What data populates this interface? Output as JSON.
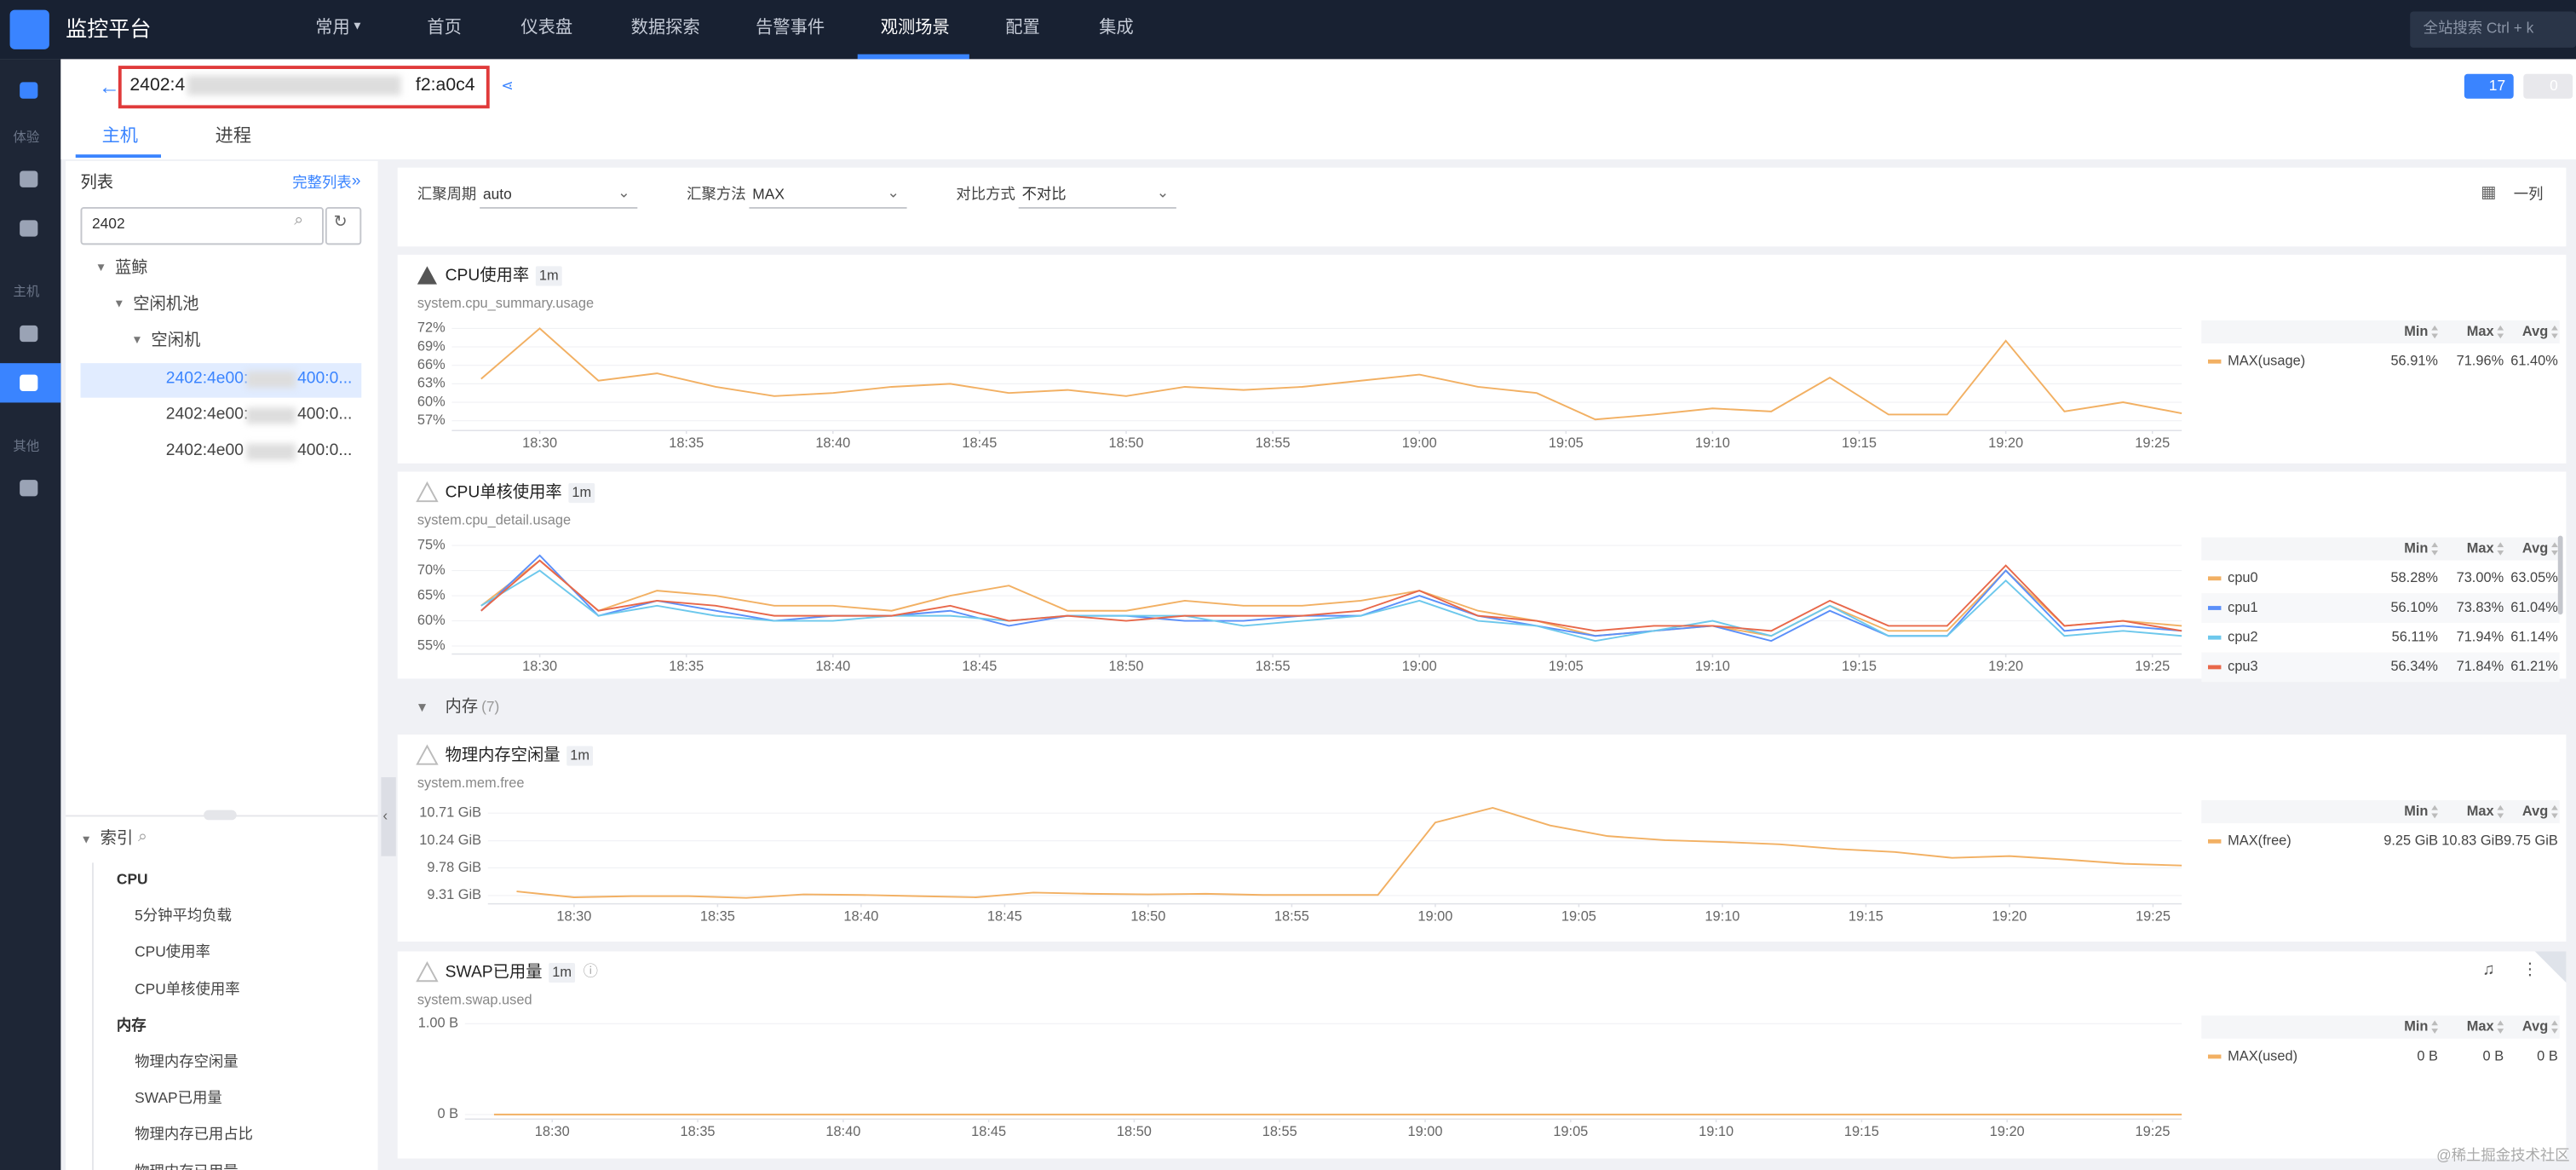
{
  "topbar": {
    "brand": "监控平台",
    "nav": [
      "常用",
      "首页",
      "仪表盘",
      "数据探索",
      "告警事件",
      "观测场景",
      "配置",
      "集成"
    ],
    "active": 5,
    "search": "全站搜索 Ctrl + k"
  },
  "sidebar": {
    "groups": [
      "体验",
      "主机",
      "其他"
    ]
  },
  "header": {
    "host_start": "2402:4",
    "host_end": "f2:a0c4",
    "alerts": 17,
    "muted": 0
  },
  "tabs": [
    "主机",
    "进程"
  ],
  "list": {
    "title": "列表",
    "full_list": "完整列表",
    "query": "2402",
    "tree": {
      "label": "蓝鲸",
      "children": [
        {
          "label": "空闲机池",
          "children": [
            {
              "label": "空闲机",
              "children": [
                {
                  "label_start": "2402:4e00:",
                  "label_end": "400:0..."
                },
                {
                  "label_start": "2402:4e00:",
                  "label_end": "400:0..."
                },
                {
                  "label_start": "2402:4e00",
                  "label_end": "400:0..."
                }
              ]
            }
          ]
        }
      ]
    }
  },
  "index": {
    "title": "索引",
    "groups": [
      {
        "name": "CPU",
        "items": [
          "5分钟平均负载",
          "CPU使用率",
          "CPU单核使用率"
        ]
      },
      {
        "name": "内存",
        "items": [
          "物理内存空闲量",
          "SWAP已用量",
          "物理内存已用占比",
          "物理内存已用量"
        ]
      }
    ]
  },
  "toolbar": {
    "fields": [
      {
        "label": "汇聚周期",
        "value": "auto"
      },
      {
        "label": "汇聚方法",
        "value": "MAX"
      },
      {
        "label": "对比方式",
        "value": "不对比"
      }
    ],
    "layout": "一列"
  },
  "section": {
    "name": "内存",
    "count": "(7)"
  },
  "watermark": "@稀土掘金技术社区",
  "chart_data": [
    {
      "type": "line",
      "title": "CPU使用率",
      "interval": "1m",
      "metric": "system.cpu_summary.usage",
      "grid": true,
      "x": [
        "18:28",
        "18:30",
        "18:32",
        "18:34",
        "18:36",
        "18:38",
        "18:40",
        "18:42",
        "18:44",
        "18:46",
        "18:48",
        "18:50",
        "18:52",
        "18:54",
        "18:56",
        "18:58",
        "19:00",
        "19:02",
        "19:04",
        "19:06",
        "19:08",
        "19:10",
        "19:12",
        "19:14",
        "19:16",
        "19:18",
        "19:20",
        "19:22",
        "19:24",
        "19:26"
      ],
      "xlim": [
        "18:27",
        "19:26"
      ],
      "xticks": [
        "18:30",
        "18:35",
        "18:40",
        "18:45",
        "18:50",
        "18:55",
        "19:00",
        "19:05",
        "19:10",
        "19:15",
        "19:20",
        "19:25"
      ],
      "ylim": [
        55.4,
        73.3
      ],
      "yticks": [
        {
          "value": 57,
          "label": "57%"
        },
        {
          "value": 60,
          "label": "60%"
        },
        {
          "value": 63,
          "label": "63%"
        },
        {
          "value": 66,
          "label": "66%"
        },
        {
          "value": 69,
          "label": "69%"
        },
        {
          "value": 72,
          "label": "72%"
        }
      ],
      "legend_columns": [
        "Min",
        "Max",
        "Avg"
      ],
      "series": [
        {
          "name": "MAX(usage)",
          "color": "#f2b063",
          "stats": [
            "56.91%",
            "71.96%",
            "61.40%"
          ],
          "values": [
            63.8,
            72,
            63.5,
            64.7,
            62.5,
            61,
            61.5,
            62.5,
            63,
            61.5,
            62,
            61,
            62.5,
            62,
            62.5,
            63.5,
            64.5,
            62.5,
            61.5,
            57.2,
            58,
            59,
            58.5,
            64,
            58,
            58,
            70,
            58.5,
            60,
            58.2
          ]
        }
      ]
    },
    {
      "type": "line",
      "title": "CPU单核使用率",
      "interval": "1m",
      "metric": "system.cpu_detail.usage",
      "grid": true,
      "x": [
        "18:28",
        "18:30",
        "18:32",
        "18:34",
        "18:36",
        "18:38",
        "18:40",
        "18:42",
        "18:44",
        "18:46",
        "18:48",
        "18:50",
        "18:52",
        "18:54",
        "18:56",
        "18:58",
        "19:00",
        "19:02",
        "19:04",
        "19:06",
        "19:08",
        "19:10",
        "19:12",
        "19:14",
        "19:16",
        "19:18",
        "19:20",
        "19:22",
        "19:24",
        "19:26"
      ],
      "xlim": [
        "18:27",
        "19:26"
      ],
      "xticks": [
        "18:30",
        "18:35",
        "18:40",
        "18:45",
        "18:50",
        "18:55",
        "19:00",
        "19:05",
        "19:10",
        "19:15",
        "19:20",
        "19:25"
      ],
      "ylim": [
        53.4,
        76.6
      ],
      "yticks": [
        {
          "value": 55,
          "label": "55%"
        },
        {
          "value": 60,
          "label": "60%"
        },
        {
          "value": 65,
          "label": "65%"
        },
        {
          "value": 70,
          "label": "70%"
        },
        {
          "value": 75,
          "label": "75%"
        }
      ],
      "legend_columns": [
        "Min",
        "Max",
        "Avg"
      ],
      "series": [
        {
          "name": "cpu0",
          "color": "#f2b063",
          "stats": [
            "58.28%",
            "73.00%",
            "63.05%"
          ],
          "values": [
            63,
            72,
            62,
            66,
            65,
            63,
            63,
            62,
            65,
            67,
            62,
            62,
            64,
            63,
            63,
            64,
            66,
            62,
            60,
            57,
            58,
            59,
            57,
            63,
            58,
            58,
            70,
            59,
            60,
            59
          ]
        },
        {
          "name": "cpu1",
          "color": "#5b8ff9",
          "stats": [
            "56.10%",
            "73.83%",
            "61.04%"
          ],
          "values": [
            62,
            73,
            61,
            64,
            62,
            60,
            61,
            61,
            62,
            59,
            61,
            61,
            60,
            60,
            61,
            61,
            65,
            61,
            59,
            57,
            58,
            59,
            56,
            62,
            57,
            57,
            70,
            58,
            59,
            58
          ]
        },
        {
          "name": "cpu2",
          "color": "#6dc8ec",
          "stats": [
            "56.11%",
            "71.94%",
            "61.14%"
          ],
          "values": [
            63,
            70,
            61,
            63,
            61,
            60,
            60,
            61,
            61,
            60,
            61,
            61,
            61,
            59,
            60,
            61,
            64,
            60,
            59,
            56,
            58,
            60,
            57,
            63,
            57,
            57,
            68,
            57,
            58,
            57
          ]
        },
        {
          "name": "cpu3",
          "color": "#e8684a",
          "stats": [
            "56.34%",
            "71.84%",
            "61.21%"
          ],
          "values": [
            62,
            72,
            62,
            64,
            63,
            61,
            61,
            61,
            63,
            60,
            61,
            60,
            61,
            61,
            61,
            62,
            66,
            61,
            60,
            58,
            59,
            59,
            58,
            64,
            59,
            59,
            71,
            59,
            60,
            58
          ]
        }
      ]
    },
    {
      "type": "line",
      "title": "物理内存空闲量",
      "interval": "1m",
      "metric": "system.mem.free",
      "grid": true,
      "x": [
        "18:28",
        "18:30",
        "18:32",
        "18:34",
        "18:36",
        "18:38",
        "18:40",
        "18:42",
        "18:44",
        "18:46",
        "18:48",
        "18:50",
        "18:52",
        "18:54",
        "18:56",
        "18:58",
        "19:00",
        "19:02",
        "19:04",
        "19:06",
        "19:08",
        "19:10",
        "19:12",
        "19:14",
        "19:16",
        "19:18",
        "19:20",
        "19:22",
        "19:24",
        "19:26"
      ],
      "xlim": [
        "18:27",
        "19:26"
      ],
      "xticks": [
        "18:30",
        "18:35",
        "18:40",
        "18:45",
        "18:50",
        "18:55",
        "19:00",
        "19:05",
        "19:10",
        "19:15",
        "19:20",
        "19:25"
      ],
      "ylim": [
        9.17,
        10.9
      ],
      "yticks": [
        {
          "value": 9.31,
          "label": "9.31 GiB"
        },
        {
          "value": 9.78,
          "label": "9.78 GiB"
        },
        {
          "value": 10.24,
          "label": "10.24 GiB"
        },
        {
          "value": 10.71,
          "label": "10.71 GiB"
        }
      ],
      "legend_columns": [
        "Min",
        "Max",
        "Avg"
      ],
      "series": [
        {
          "name": "MAX(free)",
          "color": "#f2b063",
          "stats": [
            "9.25 GiB",
            "10.83 GiB",
            "9.75 GiB"
          ],
          "values": [
            9.38,
            9.28,
            9.3,
            9.3,
            9.27,
            9.33,
            9.32,
            9.3,
            9.28,
            9.36,
            9.34,
            9.33,
            9.34,
            9.32,
            9.32,
            9.32,
            10.55,
            10.8,
            10.5,
            10.32,
            10.25,
            10.22,
            10.18,
            10.1,
            10.05,
            9.95,
            9.98,
            9.92,
            9.85,
            9.82
          ]
        }
      ]
    },
    {
      "type": "line",
      "title": "SWAP已用量",
      "interval": "1m",
      "metric": "system.swap.used",
      "grid": true,
      "x": [
        "18:28",
        "18:30",
        "18:32",
        "18:34",
        "18:36",
        "18:38",
        "18:40",
        "18:42",
        "18:44",
        "18:46",
        "18:48",
        "18:50",
        "18:52",
        "18:54",
        "18:56",
        "18:58",
        "19:00",
        "19:02",
        "19:04",
        "19:06",
        "19:08",
        "19:10",
        "19:12",
        "19:14",
        "19:16",
        "19:18",
        "19:20",
        "19:22",
        "19:24",
        "19:26"
      ],
      "xlim": [
        "18:27",
        "19:26"
      ],
      "xticks": [
        "18:30",
        "18:35",
        "18:40",
        "18:45",
        "18:50",
        "18:55",
        "19:00",
        "19:05",
        "19:10",
        "19:15",
        "19:20",
        "19:25"
      ],
      "ylim": [
        -0.05,
        1.09
      ],
      "yticks": [
        {
          "value": 0,
          "label": "0 B"
        },
        {
          "value": 1,
          "label": "1.00 B"
        }
      ],
      "legend_columns": [
        "Min",
        "Max",
        "Avg"
      ],
      "series": [
        {
          "name": "MAX(used)",
          "color": "#f2b063",
          "stats": [
            "0 B",
            "0 B",
            "0 B"
          ],
          "values": [
            0,
            0,
            0,
            0,
            0,
            0,
            0,
            0,
            0,
            0,
            0,
            0,
            0,
            0,
            0,
            0,
            0,
            0,
            0,
            0,
            0,
            0,
            0,
            0,
            0,
            0,
            0,
            0,
            0,
            0
          ]
        }
      ]
    }
  ]
}
